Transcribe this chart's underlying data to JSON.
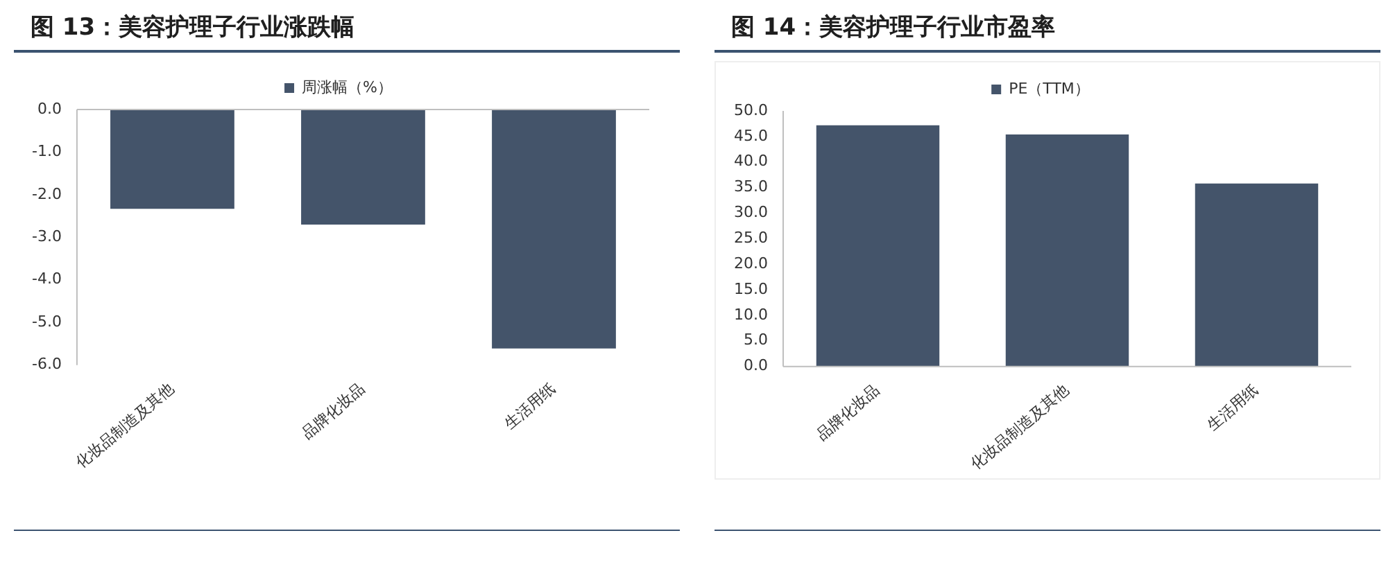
{
  "chart_data": [
    {
      "type": "bar",
      "title": "图 13：美容护理子行业涨跌幅",
      "categories": [
        "化妆品制造及其他",
        "品牌化妆品",
        "生活用纸"
      ],
      "series": [
        {
          "name": "周涨幅（%）",
          "color": "#44546a",
          "values": [
            -2.33,
            -2.7,
            -5.61
          ]
        }
      ],
      "ylim": [
        -6,
        0
      ],
      "yticks": [
        {
          "value": 0,
          "label": "0.0"
        },
        {
          "value": -1,
          "label": "-1.0"
        },
        {
          "value": -2,
          "label": "-2.0"
        },
        {
          "value": -3,
          "label": "-3.0"
        },
        {
          "value": -4,
          "label": "-4.0"
        },
        {
          "value": -5,
          "label": "-5.0"
        },
        {
          "value": -6,
          "label": "-6.0"
        }
      ],
      "legend": "top",
      "grid": false
    },
    {
      "type": "bar",
      "title": "图 14：美容护理子行业市盈率",
      "categories": [
        "品牌化妆品",
        "化妆品制造及其他",
        "生活用纸"
      ],
      "series": [
        {
          "name": "PE（TTM）",
          "color": "#44546a",
          "values": [
            47.2,
            45.4,
            35.8
          ]
        }
      ],
      "ylim": [
        0,
        50
      ],
      "yticks": [
        {
          "value": 0,
          "label": "0.0"
        },
        {
          "value": 5,
          "label": "5.0"
        },
        {
          "value": 10,
          "label": "10.0"
        },
        {
          "value": 15,
          "label": "15.0"
        },
        {
          "value": 20,
          "label": "20.0"
        },
        {
          "value": 25,
          "label": "25.0"
        },
        {
          "value": 30,
          "label": "30.0"
        },
        {
          "value": 35,
          "label": "35.0"
        },
        {
          "value": 40,
          "label": "40.0"
        },
        {
          "value": 45,
          "label": "45.0"
        },
        {
          "value": 50,
          "label": "50.0"
        }
      ],
      "legend": "top",
      "grid": false
    }
  ]
}
